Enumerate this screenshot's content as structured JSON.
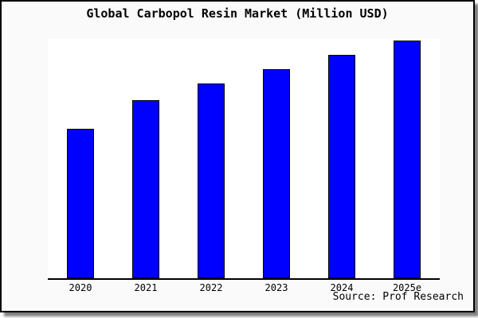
{
  "chart_data": {
    "type": "bar",
    "title": "Global Carbopol Resin Market (Million USD)",
    "categories": [
      "2020",
      "2021",
      "2022",
      "2023",
      "2024",
      "2025e"
    ],
    "values": [
      63,
      75,
      82,
      88,
      94,
      100
    ],
    "units": "relative index (no y-axis tick labels shown; tallest bar 2025e = 100)",
    "xlabel": "",
    "ylabel": "",
    "ylim": [
      0,
      101
    ],
    "grid": false,
    "legend": null,
    "source_note": "Source: Prof Research",
    "colors": {
      "bar_fill": "#0000ff",
      "bar_border": "#000000",
      "figure_background": "#fafafa",
      "plot_background": "#ffffff",
      "axis_line": "#000000",
      "text": "#000000"
    }
  }
}
